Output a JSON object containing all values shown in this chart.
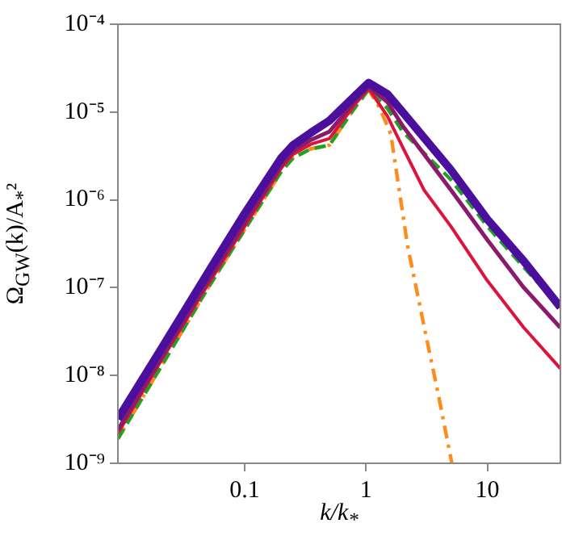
{
  "chart_data": {
    "type": "line",
    "xlabel": "k/k$_{*}$",
    "ylabel": "Ω$_{GW}$(k)/A$_{*}$²",
    "log": "xy",
    "grid": false,
    "legend": false,
    "marker": "none",
    "xlim": [
      0.009,
      40
    ],
    "xticks": [
      0.1,
      1,
      10
    ],
    "ylim": [
      1e-09,
      0.0001
    ],
    "yticks": [
      {
        "value": 1e-09,
        "label": "10⁻⁹"
      },
      {
        "value": 1e-08,
        "label": "10⁻⁸"
      },
      {
        "value": 1e-07,
        "label": "10⁻⁷"
      },
      {
        "value": 1e-06,
        "label": "10⁻⁶"
      },
      {
        "value": 1e-05,
        "label": "10⁻⁵"
      },
      {
        "value": 0.0001,
        "label": "10⁻⁴"
      }
    ],
    "series": [
      {
        "color": "#4b0f9e",
        "line_style": "solid",
        "x": [
          0.009,
          0.02,
          0.05,
          0.1,
          0.2,
          0.25,
          0.35,
          0.5,
          0.8,
          1.05,
          1.5,
          2,
          5,
          10,
          20,
          40
        ],
        "values": [
          3.2e-09,
          1.9e-08,
          1.5e-07,
          7e-07,
          3e-06,
          4.2e-06,
          5.8e-06,
          8e-06,
          1.5e-05,
          2.15e-05,
          1.6e-05,
          1e-05,
          2.2e-06,
          6e-07,
          2e-07,
          6e-08
        ]
      },
      {
        "color": "#8b1a6b",
        "line_style": "solid",
        "x": [
          0.009,
          0.02,
          0.05,
          0.1,
          0.2,
          0.25,
          0.35,
          0.5,
          0.8,
          1.05,
          1.5,
          2,
          5,
          10,
          20,
          40
        ],
        "values": [
          2.4e-09,
          1.5e-08,
          1.2e-07,
          5.5e-07,
          2.5e-06,
          3.6e-06,
          4.8e-06,
          6e-06,
          1.3e-05,
          1.95e-05,
          1.3e-05,
          7e-06,
          1.3e-06,
          3.5e-07,
          1e-07,
          3.5e-08
        ]
      },
      {
        "color": "#dc143c",
        "line_style": "solid",
        "x": [
          0.009,
          0.02,
          0.05,
          0.1,
          0.2,
          0.25,
          0.35,
          0.5,
          0.8,
          1.05,
          1.5,
          2,
          3,
          5,
          10,
          20,
          40
        ],
        "values": [
          2.2e-09,
          1.4e-08,
          1.1e-07,
          5e-07,
          2.3e-06,
          3.3e-06,
          4.3e-06,
          5e-06,
          1.2e-05,
          1.85e-05,
          9e-06,
          4e-06,
          1.3e-06,
          5e-07,
          1.2e-07,
          3.5e-08,
          1.2e-08
        ]
      },
      {
        "color": "#22a022",
        "line_style": "dashed",
        "x": [
          0.009,
          0.02,
          0.05,
          0.1,
          0.2,
          0.25,
          0.35,
          0.5,
          0.8,
          1.05,
          1.5,
          2,
          5,
          10,
          20,
          40
        ],
        "values": [
          1.9e-09,
          1.2e-08,
          1e-07,
          4.6e-07,
          2.1e-06,
          3e-06,
          3.8e-06,
          4.2e-06,
          1.1e-05,
          1.8e-05,
          1.1e-05,
          6e-06,
          1.7e-06,
          5e-07,
          1.7e-07,
          6e-08
        ]
      },
      {
        "color": "#ff8c1a",
        "line_style": "dashdot",
        "x": [
          0.009,
          0.02,
          0.05,
          0.1,
          0.2,
          0.25,
          0.35,
          0.5,
          0.8,
          1.05,
          1.3,
          1.6,
          2.2,
          3,
          4,
          5.1
        ],
        "values": [
          1.9e-09,
          1.2e-08,
          1e-07,
          4.6e-07,
          2.1e-06,
          3e-06,
          3.8e-06,
          4.2e-06,
          1.1e-05,
          1.8e-05,
          1.1e-05,
          5.6e-06,
          3e-07,
          3.7e-08,
          5.5e-09,
          1e-09
        ]
      }
    ]
  }
}
